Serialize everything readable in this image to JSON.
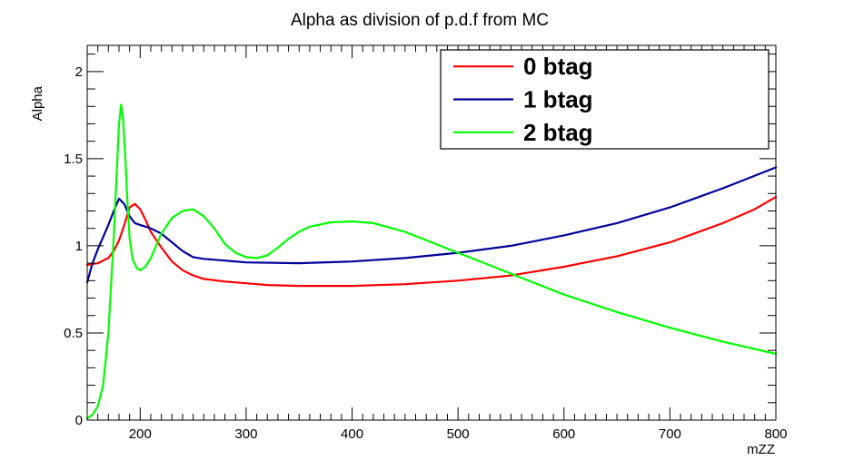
{
  "chart_data": {
    "type": "line",
    "title": "Alpha as division of p.d.f from MC",
    "xlabel": "mZZ",
    "ylabel": "Alpha",
    "xlim": [
      150,
      800
    ],
    "ylim": [
      0,
      2.15
    ],
    "x_ticks": [
      {
        "value": 200,
        "label": "200"
      },
      {
        "value": 300,
        "label": "300"
      },
      {
        "value": 400,
        "label": "400"
      },
      {
        "value": 500,
        "label": "500"
      },
      {
        "value": 600,
        "label": "600"
      },
      {
        "value": 700,
        "label": "700"
      },
      {
        "value": 800,
        "label": "800"
      }
    ],
    "y_ticks": [
      {
        "value": 0,
        "label": "0"
      },
      {
        "value": 0.5,
        "label": "0.5"
      },
      {
        "value": 1,
        "label": "1"
      },
      {
        "value": 1.5,
        "label": "1.5"
      },
      {
        "value": 2,
        "label": "2"
      }
    ],
    "legend_position": "top-right",
    "series": [
      {
        "name": "0 btag",
        "color": "#ff0000",
        "x": [
          150,
          160,
          170,
          175,
          180,
          185,
          190,
          195,
          200,
          205,
          210,
          220,
          230,
          240,
          250,
          260,
          280,
          300,
          320,
          350,
          400,
          450,
          500,
          550,
          600,
          650,
          700,
          750,
          780,
          800
        ],
        "y": [
          0.89,
          0.9,
          0.93,
          0.97,
          1.03,
          1.12,
          1.22,
          1.24,
          1.21,
          1.15,
          1.08,
          0.99,
          0.91,
          0.86,
          0.83,
          0.81,
          0.795,
          0.785,
          0.775,
          0.77,
          0.77,
          0.78,
          0.8,
          0.83,
          0.88,
          0.94,
          1.02,
          1.13,
          1.21,
          1.28
        ]
      },
      {
        "name": "1 btag",
        "color": "#000099",
        "x": [
          150,
          155,
          160,
          165,
          170,
          175,
          180,
          185,
          190,
          195,
          200,
          210,
          220,
          230,
          240,
          250,
          260,
          280,
          300,
          350,
          400,
          450,
          500,
          550,
          600,
          650,
          700,
          750,
          800
        ],
        "y": [
          0.79,
          0.9,
          0.98,
          1.05,
          1.12,
          1.2,
          1.27,
          1.24,
          1.17,
          1.13,
          1.12,
          1.1,
          1.07,
          1.02,
          0.97,
          0.935,
          0.925,
          0.915,
          0.905,
          0.9,
          0.91,
          0.93,
          0.96,
          1.0,
          1.06,
          1.13,
          1.22,
          1.33,
          1.45
        ]
      },
      {
        "name": "2 btag",
        "color": "#00ff00",
        "x": [
          150,
          155,
          160,
          165,
          170,
          175,
          178,
          180,
          182,
          184,
          186,
          188,
          190,
          193,
          197,
          200,
          205,
          210,
          215,
          220,
          230,
          240,
          250,
          260,
          270,
          280,
          290,
          300,
          310,
          320,
          330,
          340,
          350,
          360,
          380,
          400,
          420,
          450,
          500,
          550,
          600,
          650,
          700,
          750,
          800
        ],
        "y": [
          0.01,
          0.03,
          0.08,
          0.2,
          0.5,
          1.05,
          1.45,
          1.7,
          1.81,
          1.72,
          1.5,
          1.25,
          1.05,
          0.92,
          0.87,
          0.86,
          0.88,
          0.93,
          1.0,
          1.07,
          1.16,
          1.2,
          1.21,
          1.17,
          1.1,
          1.01,
          0.96,
          0.935,
          0.93,
          0.945,
          0.99,
          1.04,
          1.08,
          1.11,
          1.135,
          1.14,
          1.13,
          1.08,
          0.96,
          0.84,
          0.72,
          0.62,
          0.53,
          0.45,
          0.38
        ]
      }
    ]
  }
}
